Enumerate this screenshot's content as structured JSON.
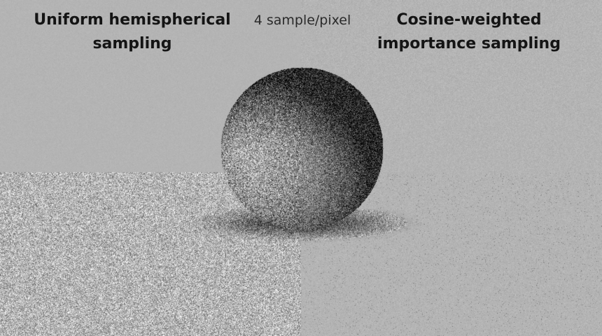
{
  "captions": {
    "left_title": "Uniform hemispherical sampling",
    "center_label": "4 sample/pixel",
    "right_title": "Cosine-weighted importance sampling"
  },
  "scene": {
    "description_colors": {
      "background": "#b3b3b3",
      "ground": "#b5b5b5",
      "text": "#141414"
    }
  }
}
